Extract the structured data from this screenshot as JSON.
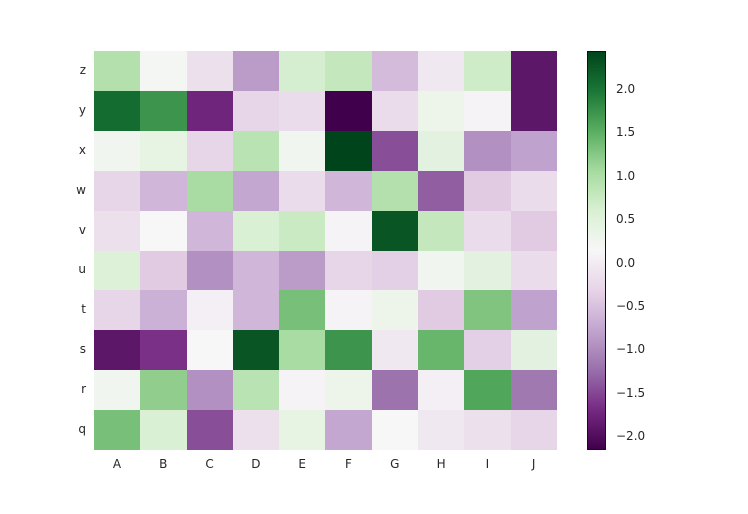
{
  "chart_data": {
    "type": "heatmap",
    "title": "",
    "xlabel": "",
    "ylabel": "",
    "colormap": "PRGn",
    "vmin": -2.15,
    "vmax": 2.45,
    "x_categories": [
      "A",
      "B",
      "C",
      "D",
      "E",
      "F",
      "G",
      "H",
      "I",
      "J"
    ],
    "y_categories": [
      "z",
      "y",
      "x",
      "w",
      "v",
      "u",
      "t",
      "s",
      "r",
      "q"
    ],
    "values": [
      [
        0.95,
        0.2,
        -0.15,
        -0.85,
        0.65,
        0.8,
        -0.55,
        -0.05,
        0.7,
        -1.9
      ],
      [
        2.1,
        1.75,
        -1.75,
        -0.3,
        -0.2,
        -2.15,
        -0.2,
        0.3,
        0.1,
        -1.9
      ],
      [
        0.25,
        0.4,
        -0.3,
        0.9,
        0.25,
        2.45,
        -1.45,
        0.45,
        -0.95,
        -0.8
      ],
      [
        -0.3,
        -0.6,
        1.05,
        -0.75,
        -0.2,
        -0.6,
        0.95,
        -1.35,
        -0.4,
        -0.2
      ],
      [
        -0.15,
        0.15,
        -0.6,
        0.6,
        0.75,
        0.1,
        2.3,
        0.8,
        -0.2,
        -0.4
      ],
      [
        0.55,
        -0.4,
        -0.95,
        -0.6,
        -0.85,
        -0.3,
        -0.35,
        0.25,
        0.45,
        -0.2
      ],
      [
        -0.3,
        -0.65,
        0.05,
        -0.6,
        1.35,
        0.1,
        0.3,
        -0.4,
        1.3,
        -0.8
      ],
      [
        -1.9,
        -1.65,
        0.15,
        2.3,
        1.05,
        1.75,
        -0.05,
        1.45,
        -0.35,
        0.45
      ],
      [
        0.25,
        1.2,
        -0.95,
        0.9,
        0.1,
        0.3,
        -1.2,
        0.05,
        1.6,
        -1.15
      ],
      [
        1.35,
        0.6,
        -1.45,
        -0.15,
        0.4,
        -0.75,
        0.15,
        -0.05,
        -0.15,
        -0.3
      ]
    ],
    "colorbar": {
      "ticks": [
        "2.0",
        "1.5",
        "1.0",
        "0.5",
        "0.0",
        "−0.5",
        "−1.0",
        "−1.5",
        "−2.0"
      ],
      "tick_values": [
        2.0,
        1.5,
        1.0,
        0.5,
        0.0,
        -0.5,
        -1.0,
        -1.5,
        -2.0
      ]
    },
    "grid": false
  }
}
